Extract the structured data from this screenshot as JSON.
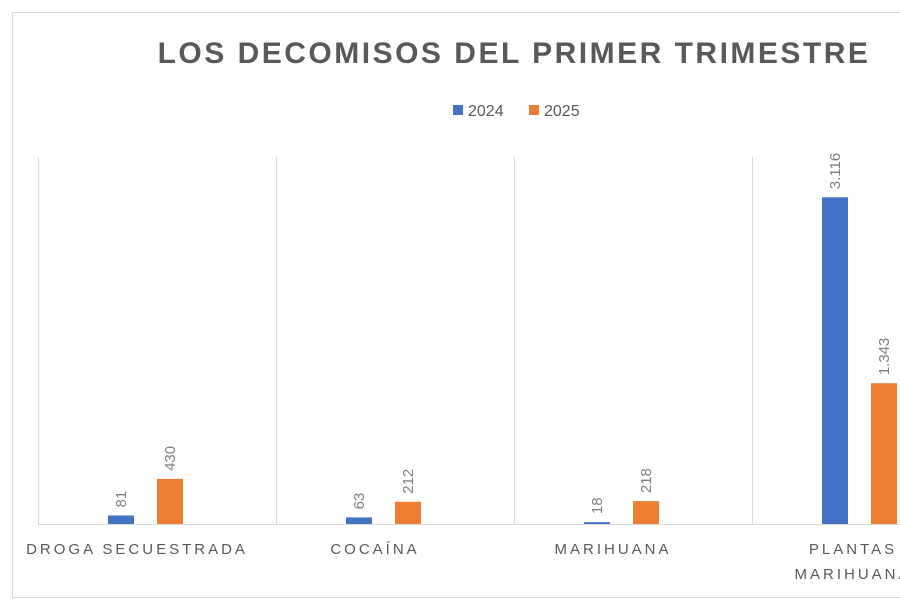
{
  "chart_data": {
    "type": "bar",
    "title": "LOS DECOMISOS DEL PRIMER TRIMESTRE",
    "categories": [
      "DROGA SECUESTRADA",
      "COCAÍNA",
      "MARIHUANA",
      "PLANTAS MARIHUANA"
    ],
    "series": [
      {
        "name": "2024",
        "color": "#4472c4",
        "values": [
          81,
          63,
          18,
          3116
        ],
        "labels": [
          "81",
          "63",
          "18",
          "3.116"
        ]
      },
      {
        "name": "2025",
        "color": "#ed7d31",
        "values": [
          430,
          212,
          218,
          1343
        ],
        "labels": [
          "430",
          "212",
          "218",
          "1.343"
        ]
      }
    ],
    "ylim": [
      0,
      3500
    ],
    "grid": false,
    "legend": "top",
    "xlabel": "",
    "ylabel": ""
  }
}
